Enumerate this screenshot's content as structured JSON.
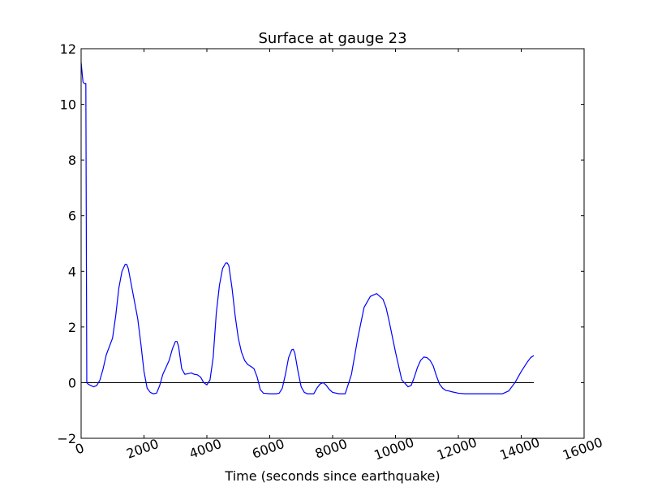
{
  "chart_data": {
    "type": "line",
    "title": "Surface at gauge 23",
    "xlabel": "Time (seconds since earthquake)",
    "ylabel": "",
    "xlim": [
      0,
      16000
    ],
    "ylim": [
      -2,
      12
    ],
    "xticks": [
      0,
      2000,
      4000,
      6000,
      8000,
      10000,
      12000,
      14000,
      16000
    ],
    "yticks": [
      -2,
      0,
      2,
      4,
      6,
      8,
      10,
      12
    ],
    "xtick_labels": [
      "0",
      "2000",
      "4000",
      "6000",
      "8000",
      "10000",
      "12000",
      "14000",
      "16000"
    ],
    "ytick_labels": [
      "−2",
      "0",
      "2",
      "4",
      "6",
      "8",
      "10",
      "12"
    ],
    "xtick_rotation": "slanted",
    "grid": false,
    "colors": {
      "series": "#0000ff",
      "reference": "#000000"
    },
    "series": [
      {
        "x": [
          0,
          60,
          100,
          150,
          180,
          220,
          300,
          400,
          500,
          600,
          700,
          800,
          900,
          1000,
          1100,
          1200,
          1300,
          1400,
          1450,
          1500,
          1600,
          1700,
          1800,
          1900,
          2000,
          2100,
          2200,
          2300,
          2400,
          2500,
          2600,
          2700,
          2800,
          2900,
          3000,
          3050,
          3100,
          3150,
          3200,
          3300,
          3400,
          3500,
          3600,
          3700,
          3800,
          3900,
          4000,
          4100,
          4200,
          4300,
          4400,
          4500,
          4600,
          4650,
          4700,
          4800,
          4900,
          5000,
          5100,
          5200,
          5300,
          5400,
          5500,
          5600,
          5700,
          5800,
          6000,
          6200,
          6300,
          6400,
          6500,
          6600,
          6700,
          6750,
          6800,
          6900,
          7000,
          7100,
          7200,
          7400,
          7500,
          7600,
          7700,
          7800,
          7900,
          8000,
          8200,
          8400,
          8600,
          8800,
          9000,
          9200,
          9400,
          9600,
          9700,
          9800,
          10000,
          10200,
          10400,
          10500,
          10600,
          10700,
          10800,
          10900,
          11000,
          11100,
          11200,
          11300,
          11400,
          11500,
          11600,
          11700,
          11800,
          12000,
          12200,
          12400,
          12600,
          12800,
          13000,
          13200,
          13400,
          13600,
          13800,
          14000,
          14200,
          14300,
          14400
        ],
        "y": [
          11.5,
          10.8,
          10.75,
          10.75,
          0.0,
          -0.05,
          -0.1,
          -0.15,
          -0.1,
          0.1,
          0.5,
          1.0,
          1.3,
          1.6,
          2.4,
          3.4,
          4.0,
          4.25,
          4.25,
          4.1,
          3.5,
          2.9,
          2.3,
          1.4,
          0.4,
          -0.2,
          -0.35,
          -0.4,
          -0.38,
          -0.1,
          0.3,
          0.55,
          0.8,
          1.2,
          1.48,
          1.48,
          1.3,
          0.9,
          0.5,
          0.3,
          0.32,
          0.35,
          0.3,
          0.28,
          0.2,
          0.0,
          -0.08,
          0.1,
          0.9,
          2.5,
          3.5,
          4.1,
          4.3,
          4.3,
          4.2,
          3.4,
          2.4,
          1.6,
          1.1,
          0.8,
          0.65,
          0.58,
          0.5,
          0.2,
          -0.25,
          -0.38,
          -0.4,
          -0.4,
          -0.38,
          -0.2,
          0.3,
          0.9,
          1.18,
          1.2,
          1.05,
          0.4,
          -0.15,
          -0.35,
          -0.4,
          -0.4,
          -0.2,
          -0.05,
          0.0,
          -0.1,
          -0.25,
          -0.35,
          -0.4,
          -0.4,
          0.3,
          1.6,
          2.7,
          3.1,
          3.2,
          3.0,
          2.7,
          2.2,
          1.1,
          0.1,
          -0.15,
          -0.1,
          0.2,
          0.55,
          0.8,
          0.92,
          0.9,
          0.8,
          0.6,
          0.25,
          -0.05,
          -0.2,
          -0.28,
          -0.3,
          -0.33,
          -0.38,
          -0.4,
          -0.4,
          -0.4,
          -0.4,
          -0.4,
          -0.4,
          -0.4,
          -0.3,
          0.0,
          0.4,
          0.75,
          0.9,
          0.97
        ]
      }
    ],
    "reference_lines": [
      {
        "x": [
          100,
          14400
        ],
        "y": [
          0,
          0
        ]
      }
    ]
  }
}
